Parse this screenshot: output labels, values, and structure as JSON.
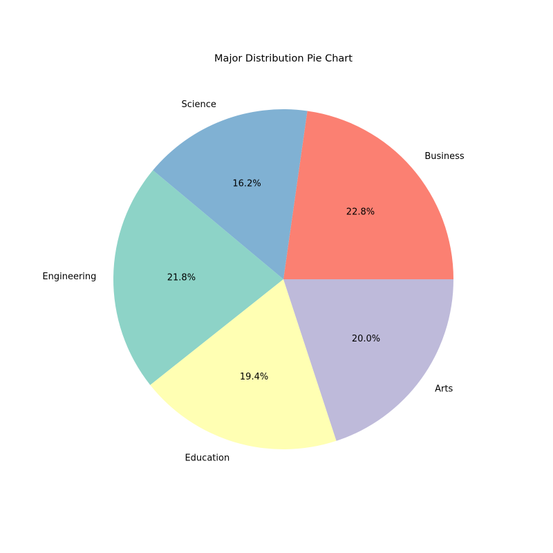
{
  "chart_data": {
    "type": "pie",
    "title": "Major Distribution Pie Chart",
    "categories": [
      "Business",
      "Science",
      "Engineering",
      "Education",
      "Arts"
    ],
    "values": [
      22.8,
      16.2,
      21.8,
      19.4,
      20.0
    ],
    "value_labels": [
      "22.8%",
      "16.2%",
      "21.8%",
      "19.4%",
      "20.0%"
    ],
    "colors": [
      "#fb8072",
      "#80b1d3",
      "#8dd3c7",
      "#ffffb3",
      "#bebada"
    ],
    "start_angle_deg": 0,
    "direction": "counterclockwise",
    "legend": "none"
  }
}
